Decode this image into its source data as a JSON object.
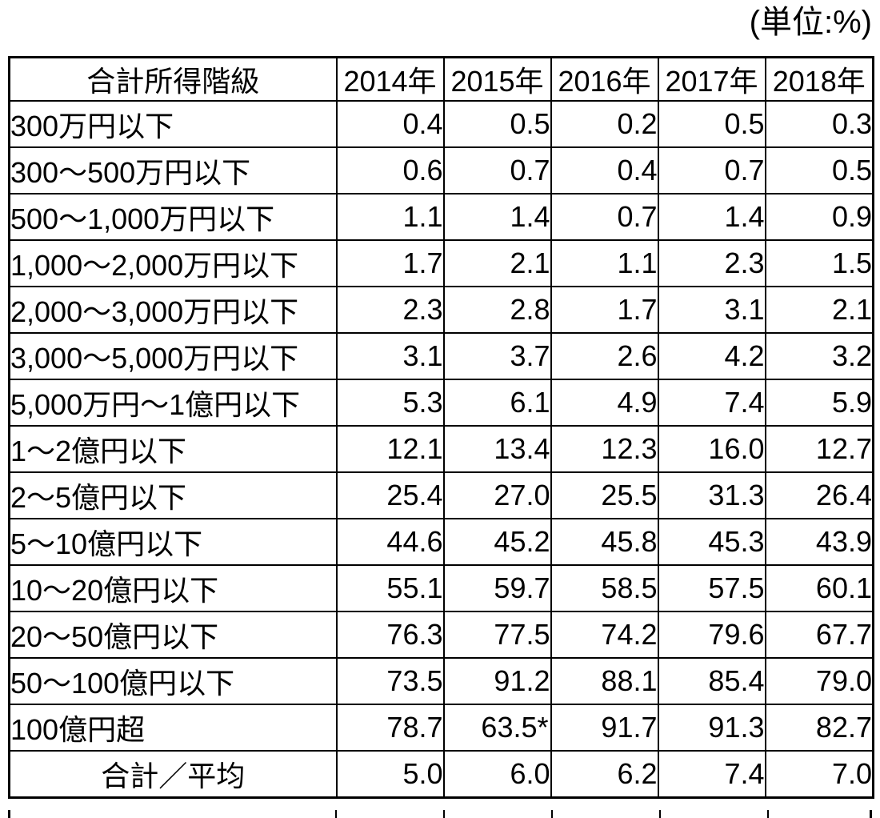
{
  "chart_data": {
    "type": "table",
    "unit_label": "(単位:%)",
    "columns": [
      "合計所得階級",
      "2014年",
      "2015年",
      "2016年",
      "2017年",
      "2018年"
    ],
    "rows": [
      {
        "label": "300万円以下",
        "values": [
          "0.4",
          "0.5",
          "0.2",
          "0.5",
          "0.3"
        ]
      },
      {
        "label": "300〜500万円以下",
        "values": [
          "0.6",
          "0.7",
          "0.4",
          "0.7",
          "0.5"
        ]
      },
      {
        "label": "500〜1,000万円以下",
        "values": [
          "1.1",
          "1.4",
          "0.7",
          "1.4",
          "0.9"
        ]
      },
      {
        "label": "1,000〜2,000万円以下",
        "values": [
          "1.7",
          "2.1",
          "1.1",
          "2.3",
          "1.5"
        ]
      },
      {
        "label": "2,000〜3,000万円以下",
        "values": [
          "2.3",
          "2.8",
          "1.7",
          "3.1",
          "2.1"
        ]
      },
      {
        "label": "3,000〜5,000万円以下",
        "values": [
          "3.1",
          "3.7",
          "2.6",
          "4.2",
          "3.2"
        ]
      },
      {
        "label": "5,000万円〜1億円以下",
        "values": [
          "5.3",
          "6.1",
          "4.9",
          "7.4",
          "5.9"
        ]
      },
      {
        "label": "1〜2億円以下",
        "values": [
          "12.1",
          "13.4",
          "12.3",
          "16.0",
          "12.7"
        ]
      },
      {
        "label": "2〜5億円以下",
        "values": [
          "25.4",
          "27.0",
          "25.5",
          "31.3",
          "26.4"
        ]
      },
      {
        "label": "5〜10億円以下",
        "values": [
          "44.6",
          "45.2",
          "45.8",
          "45.3",
          "43.9"
        ]
      },
      {
        "label": "10〜20億円以下",
        "values": [
          "55.1",
          "59.7",
          "58.5",
          "57.5",
          "60.1"
        ]
      },
      {
        "label": "20〜50億円以下",
        "values": [
          "76.3",
          "77.5",
          "74.2",
          "79.6",
          "67.7"
        ]
      },
      {
        "label": "50〜100億円以下",
        "values": [
          "73.5",
          "91.2",
          "88.1",
          "85.4",
          "79.0"
        ]
      },
      {
        "label": "100億円超",
        "values": [
          "78.7",
          "63.5*",
          "91.7",
          "91.3",
          "82.7"
        ]
      },
      {
        "label": "合計／平均",
        "values": [
          "5.0",
          "6.0",
          "6.2",
          "7.4",
          "7.0"
        ],
        "label_align": "center"
      }
    ]
  }
}
